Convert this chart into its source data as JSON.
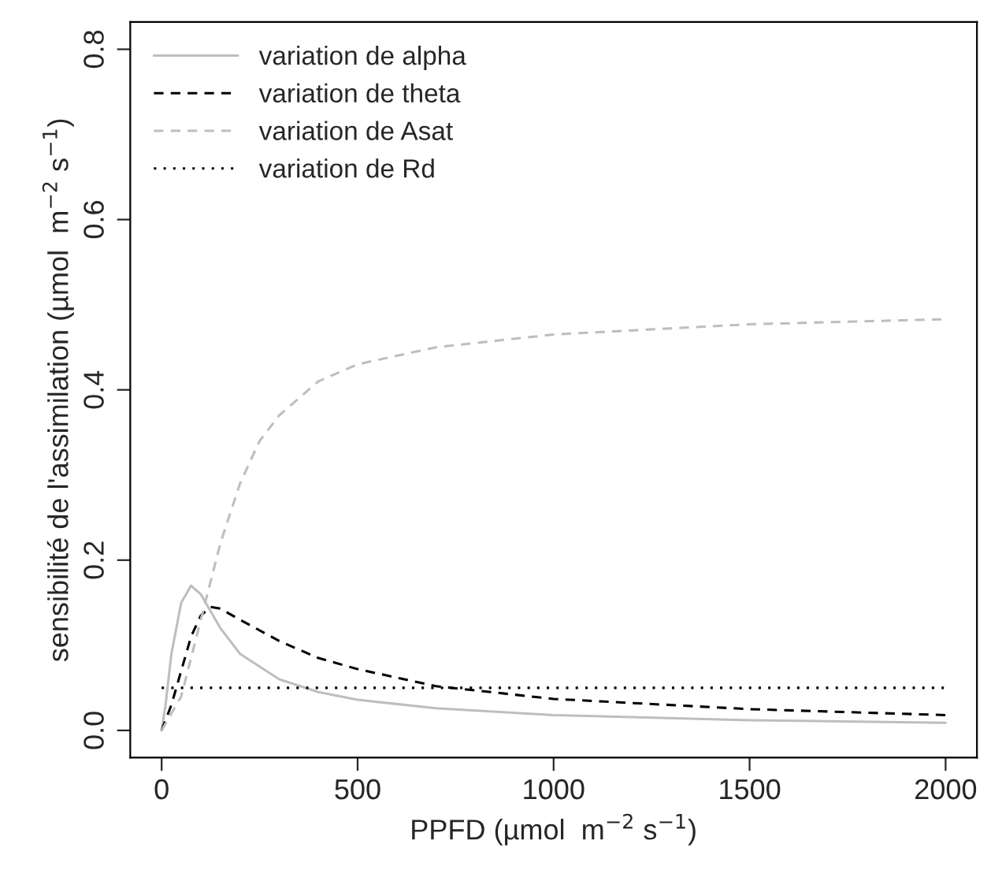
{
  "chart_data": {
    "type": "line",
    "xlabel": "PPFD (µmol  m$^{−2}$ s$^{−1}$)",
    "ylabel": "sensibilité de l'assimilation (µmol  m$^{−2}$ s$^{−1}$)",
    "xlim": [
      -80,
      2080
    ],
    "ylim": [
      -0.032,
      0.832
    ],
    "xticks": [
      0,
      500,
      1000,
      1500,
      2000
    ],
    "yticks": [
      {
        "value": 0,
        "label": "0.0"
      },
      {
        "value": 0.2,
        "label": "0.2"
      },
      {
        "value": 0.4,
        "label": "0.4"
      },
      {
        "value": 0.6,
        "label": "0.6"
      },
      {
        "value": 0.8,
        "label": "0.8"
      }
    ],
    "grid": false,
    "legend": "top left",
    "series": [
      {
        "name": "variation de alpha",
        "color": "#bebebe",
        "line_style": "solid",
        "x": [
          0,
          10,
          25,
          50,
          75,
          100,
          150,
          200,
          300,
          400,
          500,
          700,
          1000,
          1500,
          2000
        ],
        "values": [
          0,
          0.03,
          0.09,
          0.15,
          0.17,
          0.16,
          0.12,
          0.09,
          0.06,
          0.045,
          0.036,
          0.026,
          0.018,
          0.012,
          0.009
        ]
      },
      {
        "name": "variation de theta",
        "color": "#000000",
        "line_style": "dashed",
        "x": [
          0,
          25,
          50,
          75,
          100,
          125,
          150,
          200,
          300,
          400,
          500,
          700,
          1000,
          1500,
          2000
        ],
        "values": [
          0,
          0.03,
          0.07,
          0.11,
          0.135,
          0.145,
          0.143,
          0.13,
          0.105,
          0.085,
          0.072,
          0.052,
          0.037,
          0.025,
          0.018
        ]
      },
      {
        "name": "variation de Asat",
        "color": "#bebebe",
        "line_style": "dashed",
        "x": [
          0,
          50,
          100,
          150,
          200,
          250,
          300,
          400,
          500,
          700,
          1000,
          1500,
          2000
        ],
        "values": [
          0,
          0.04,
          0.13,
          0.22,
          0.29,
          0.34,
          0.37,
          0.41,
          0.43,
          0.45,
          0.465,
          0.477,
          0.483
        ]
      },
      {
        "name": "variation de Rd",
        "color": "#000000",
        "line_style": "dotted",
        "x": [
          0,
          2000
        ],
        "values": [
          0.05,
          0.05
        ]
      }
    ]
  }
}
